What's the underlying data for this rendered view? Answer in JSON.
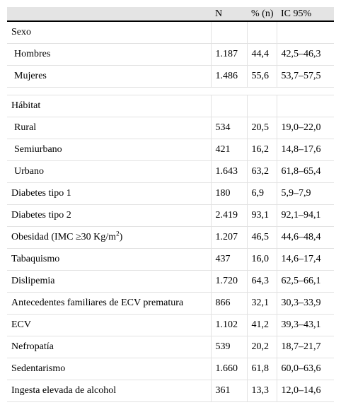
{
  "table": {
    "header": [
      "N",
      "% (n)",
      "IC 95%"
    ],
    "rows": [
      {
        "label": "Sexo",
        "items": [
          {
            "label": "Hombres",
            "cells": [
              "1.187",
              "44,4",
              "42,5–46,3"
            ]
          },
          {
            "label": "Mujeres",
            "cells": [
              "1.486",
              "55,6",
              "53,7–57,5"
            ]
          }
        ]
      },
      {
        "label": "Hábitat",
        "items": [
          {
            "label": "Rural",
            "cells": [
              "534",
              "20,5",
              "19,0–22,0"
            ]
          },
          {
            "label": "Semiurbano",
            "cells": [
              "421",
              "16,2",
              "14,8–17,6"
            ]
          },
          {
            "label": "Urbano",
            "cells": [
              "1.643",
              "63,2",
              "61,8–65,4"
            ]
          }
        ]
      },
      {
        "label": "Diabetes tipo 1",
        "cells": [
          "180",
          "6,9",
          "5,9–7,9"
        ]
      },
      {
        "label": "Diabetes tipo 2",
        "cells": [
          "2.419",
          "93,1",
          "92,1–94,1"
        ]
      },
      {
        "label": [
          "Obesidad (IMC ≥30 Kg/m",
          "2",
          ")"
        ],
        "cells": [
          "1.207",
          "46,5",
          "44,6–48,4"
        ]
      },
      {
        "label": "Tabaquismo",
        "cells": [
          "437",
          "16,0",
          "14,6–17,4"
        ]
      },
      {
        "label": "Dislipemia",
        "cells": [
          "1.720",
          "64,3",
          "62,5–66,1"
        ]
      },
      {
        "label": "Antecedentes familiares de ECV prematura",
        "cells": [
          "866",
          "32,1",
          "30,3–33,9"
        ]
      },
      {
        "label": "ECV",
        "cells": [
          "1.102",
          "41,2",
          "39,3–43,1"
        ]
      },
      {
        "label": "Nefropatía",
        "cells": [
          "539",
          "20,2",
          "18,7–21,7"
        ]
      },
      {
        "label": "Sedentarismo",
        "cells": [
          "1.660",
          "61,8",
          "60,0–63,6"
        ]
      },
      {
        "label": "Ingesta elevada de alcohol",
        "cells": [
          "361",
          "13,3",
          "12,0–14,6"
        ]
      }
    ]
  }
}
